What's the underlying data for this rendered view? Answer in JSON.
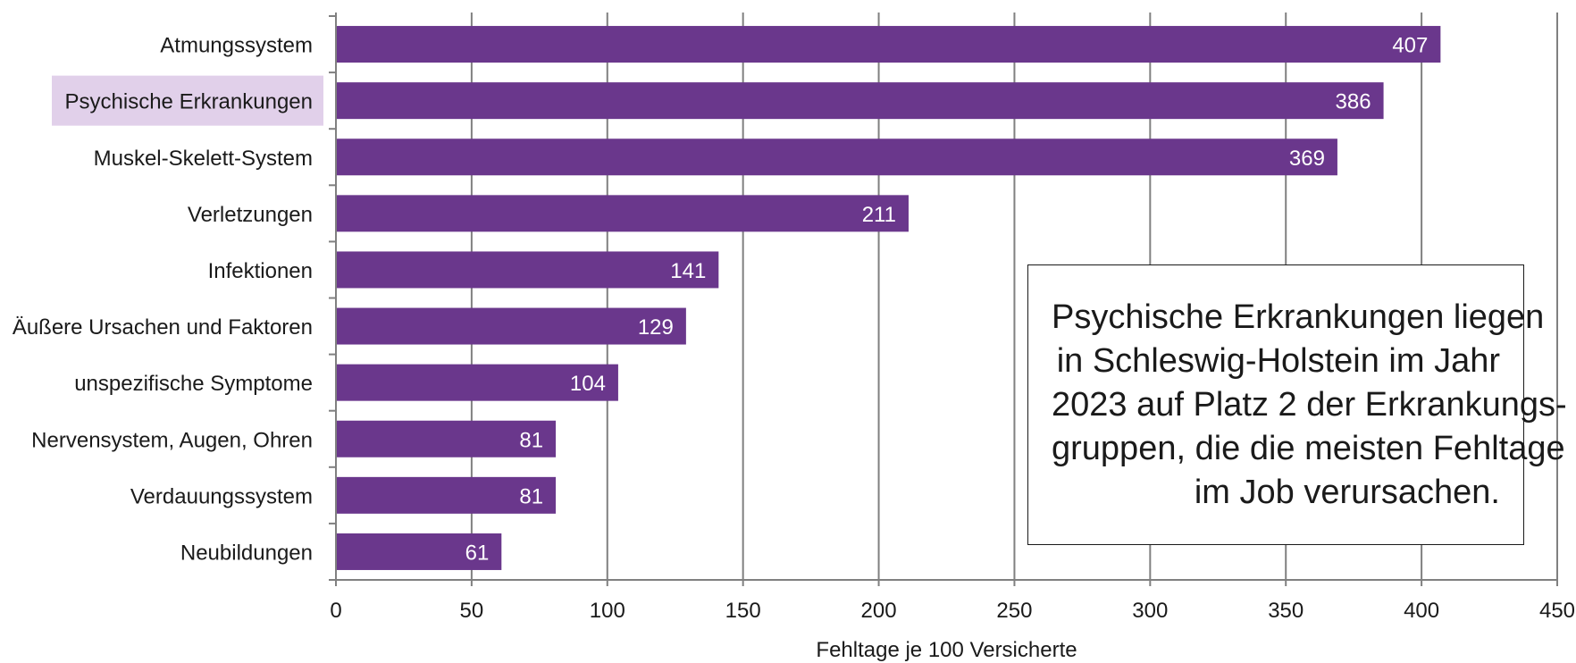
{
  "chart_data": {
    "type": "bar",
    "orientation": "horizontal",
    "categories": [
      "Atmungssystem",
      "Psychische Erkrankungen",
      "Muskel-Skelett-System",
      "Verletzungen",
      "Infektionen",
      "Äußere Ursachen und Faktoren",
      "unspezifische Symptome",
      "Nervensystem, Augen, Ohren",
      "Verdauungssystem",
      "Neubildungen"
    ],
    "values": [
      407,
      386,
      369,
      211,
      141,
      129,
      104,
      81,
      81,
      61
    ],
    "highlighted_category": "Psychische Erkrankungen",
    "xlabel": "Fehltage je 100 Versicherte",
    "xlim": [
      0,
      450
    ],
    "xticks": [
      0,
      50,
      100,
      150,
      200,
      250,
      300,
      350,
      400,
      450
    ],
    "grid": "vertical",
    "colors": {
      "bar": "#6a378c",
      "highlight_background": "#e1d0ea",
      "grid": "#808080"
    }
  },
  "callout": {
    "lines": [
      "Psychische Erkrankungen liegen",
      "in Schleswig-Holstein im Jahr",
      "2023 auf Platz 2 der Erkrankungs-",
      "gruppen, die die meisten Fehltage",
      "im Job verursachen."
    ]
  }
}
